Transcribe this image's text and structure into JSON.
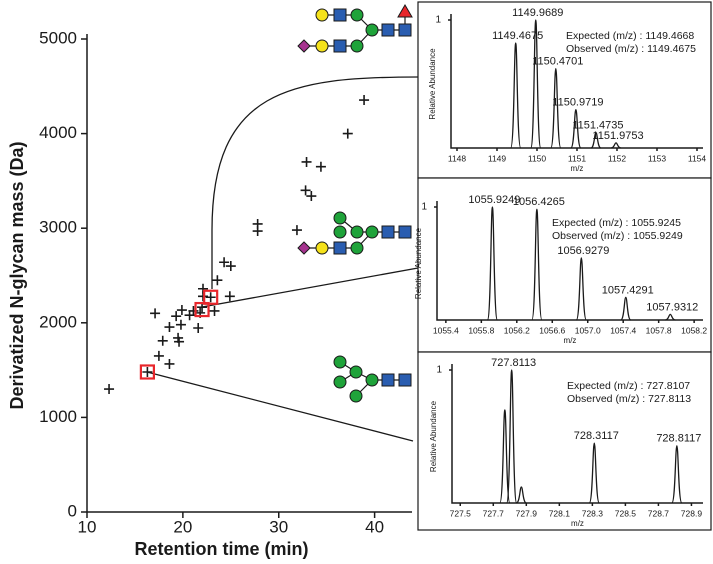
{
  "chart_data": [
    {
      "type": "scatter",
      "x_label": "Retention time (min)",
      "y_label": "Derivatized N-glycan mass (Da)",
      "xlim": [
        10,
        43.9
      ],
      "xticks": [
        10,
        20,
        30,
        40
      ],
      "ylim": [
        0,
        5000
      ],
      "yticks": [
        0,
        1000,
        2000,
        3000,
        4000,
        5000
      ],
      "grid": false,
      "series": [
        {
          "color": "#1a1a1a",
          "marker": "plus",
          "x": [
            12.3,
            16.3,
            17.5,
            17.1,
            17.9,
            18.6,
            18.6,
            19.3,
            19.5,
            19.8,
            19.6,
            19.9,
            20.7,
            21.1,
            21.6,
            21.8,
            22.0,
            22.1,
            22.1,
            22.9,
            23.6,
            23.3,
            24.3,
            25.0,
            24.9,
            27.8,
            27.8,
            31.9,
            32.8,
            32.9,
            33.4,
            34.4,
            37.2,
            38.9
          ],
          "values": [
            1300,
            1480,
            1650,
            2100,
            1810,
            1565,
            1955,
            2070,
            1840,
            1980,
            1800,
            2135,
            2080,
            2125,
            1945,
            2105,
            2165,
            2280,
            2360,
            2270,
            2450,
            2125,
            2640,
            2600,
            2280,
            3045,
            2970,
            2980,
            3400,
            3700,
            3340,
            3650,
            4000,
            4355
          ]
        },
        {
          "color": "#e8262b",
          "marker": "square",
          "x": [
            16.3,
            22.0,
            22.9
          ],
          "values": [
            1480,
            2140,
            2270
          ]
        }
      ]
    },
    {
      "type": "spectrum",
      "y_label": "Relative Abundance",
      "x_label": "m/z",
      "xlim": [
        1147.85,
        1154.15
      ],
      "xticks": [
        1148,
        1149,
        1150,
        1151,
        1152,
        1153,
        1154
      ],
      "ylim": [
        0,
        1
      ],
      "yticks": [
        1
      ],
      "color": "#1a1a1a",
      "x": [
        1149.4675,
        1149.9689,
        1150.4701,
        1150.9719,
        1151.4735,
        1151.9753
      ],
      "values": [
        0.82,
        1.0,
        0.62,
        0.3,
        0.12,
        0.04
      ],
      "peak_labels": [
        "1149.4675",
        "1149.9689",
        "1150.4701",
        "1150.9719",
        "1151.4735",
        "1151.9753"
      ],
      "annotations": [
        "Expected (m/z) : 1149.4668",
        "Observed (m/z) : 1149.4675"
      ]
    },
    {
      "type": "spectrum",
      "y_label": "Relative Abundance",
      "x_label": "m/z",
      "xlim": [
        1055.3,
        1058.3
      ],
      "xticks": [
        1055.4,
        1055.8,
        1056.2,
        1056.6,
        {
          "value": 1057,
          "label": "1057.0"
        },
        1057.4,
        1057.8,
        1058.2
      ],
      "ylim": [
        0,
        1
      ],
      "yticks": [
        1
      ],
      "color": "#1a1a1a",
      "x": [
        1055.9249,
        1056.4265,
        1056.9279,
        1057.4291,
        1057.9312
      ],
      "values": [
        1.0,
        0.98,
        0.55,
        0.2,
        0.05
      ],
      "peak_labels": [
        "1055.9249",
        "1056.4265",
        "1056.9279",
        "1057.4291",
        "1057.9312"
      ],
      "annotations": [
        "Expected (m/z) : 1055.9245",
        "Observed (m/z) : 1055.9249"
      ]
    },
    {
      "type": "spectrum",
      "y_label": "Relative Abundance",
      "x_label": "m/z",
      "xlim": [
        727.45,
        728.97
      ],
      "xticks": [
        727.5,
        727.7,
        727.9,
        728.1,
        728.3,
        728.5,
        728.7,
        728.9
      ],
      "ylim": [
        0,
        1
      ],
      "yticks": [
        1
      ],
      "color": "#1a1a1a",
      "x": [
        727.77,
        727.8113,
        727.87,
        728.3117,
        728.8117
      ],
      "values": [
        0.7,
        1.0,
        0.12,
        0.45,
        0.43
      ],
      "peak_labels": [
        null,
        "727.8113",
        null,
        "728.3117",
        "728.8117"
      ],
      "annotations": [
        "Expected (m/z) : 727.8107",
        "Observed (m/z) : 727.8113"
      ]
    }
  ]
}
